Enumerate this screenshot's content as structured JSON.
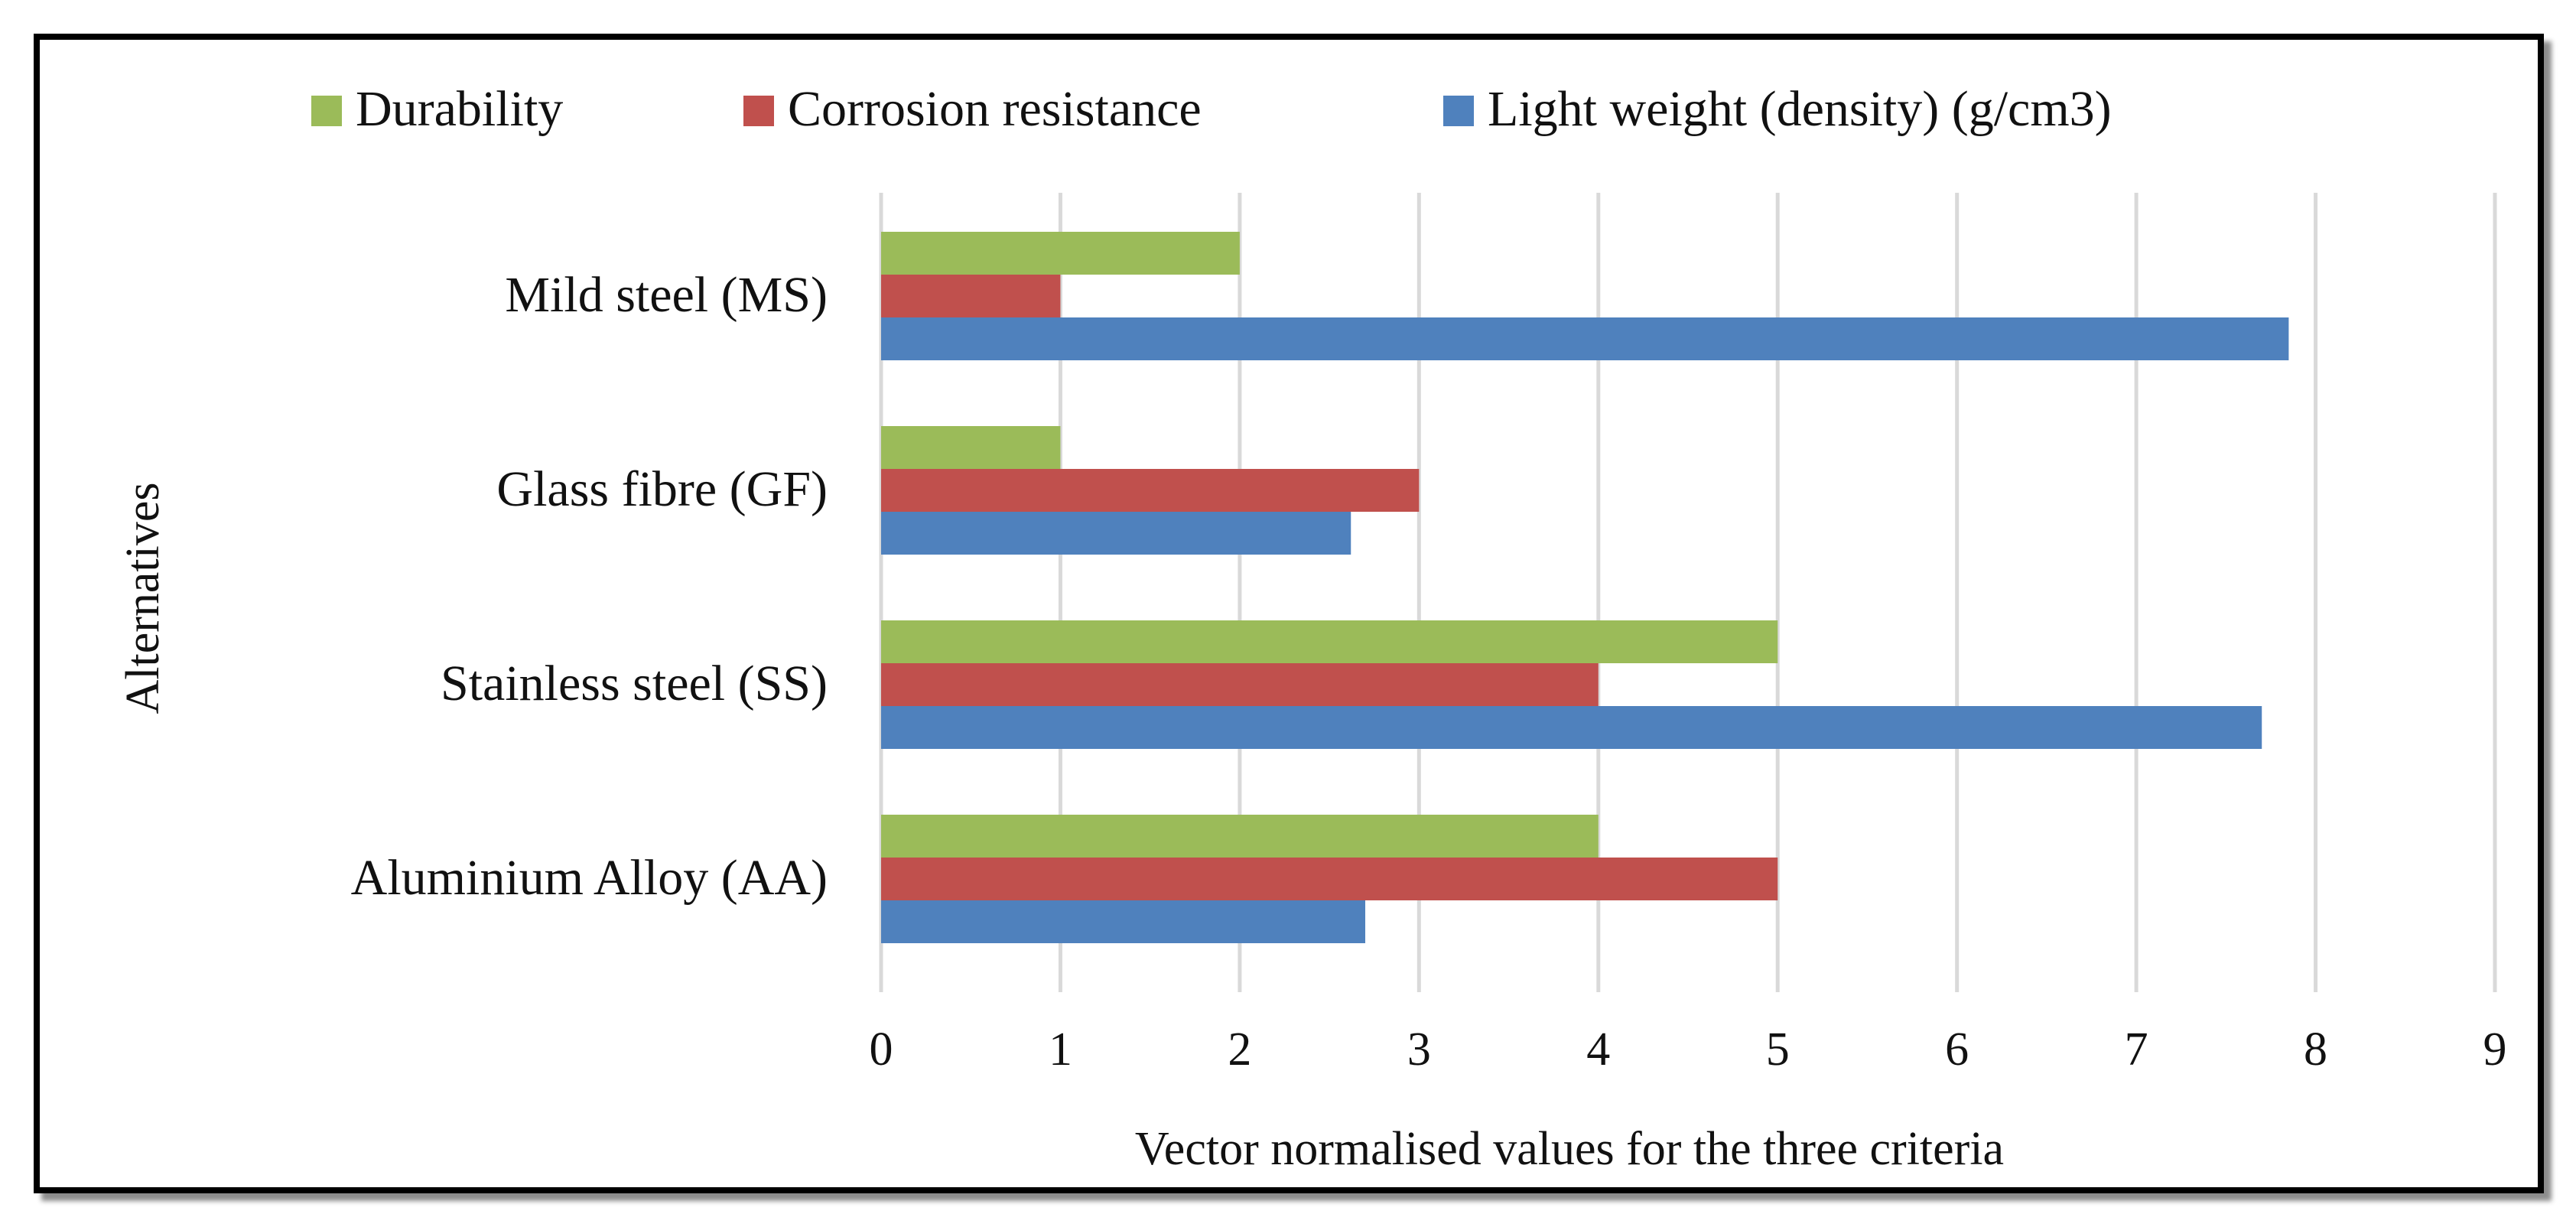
{
  "chart_data": {
    "type": "bar",
    "orientation": "horizontal",
    "title": "",
    "xlabel": "Vector normalised values for the three criteria",
    "ylabel": "Alternatives",
    "categories": [
      "Mild steel (MS)",
      "Glass fibre (GF)",
      "Stainless steel (SS)",
      "Aluminium Alloy (AA)"
    ],
    "xlim": [
      0,
      9
    ],
    "xticks": [
      "0",
      "1",
      "2",
      "3",
      "4",
      "5",
      "6",
      "7",
      "8",
      "9"
    ],
    "grid": true,
    "legend_position": "top",
    "series": [
      {
        "name": "Durability",
        "color": "#9bbb59",
        "values": [
          2,
          1,
          5,
          4
        ]
      },
      {
        "name": "Corrosion resistance",
        "color": "#c0504d",
        "values": [
          1,
          3,
          4,
          5
        ]
      },
      {
        "name": "Light weight (density) (g/cm3)",
        "color": "#4f81bd",
        "values": [
          7.85,
          2.62,
          7.7,
          2.7
        ]
      }
    ]
  }
}
